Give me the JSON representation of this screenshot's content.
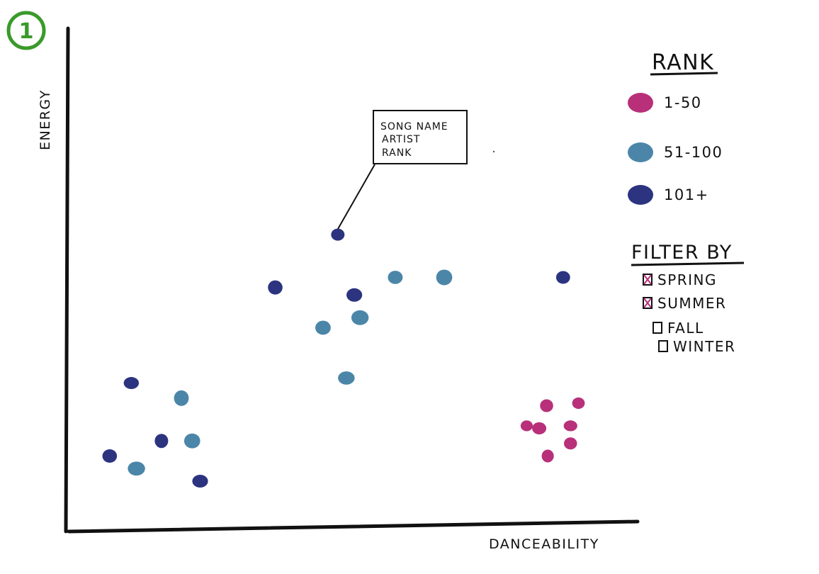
{
  "step_badge": "1",
  "chart_data": {
    "type": "scatter",
    "xlabel": "DANCEABILITY",
    "ylabel": "ENERGY",
    "xlim": [
      0,
      100
    ],
    "ylim": [
      0,
      100
    ],
    "grid": false,
    "legend_title": "RANK",
    "legend_position": "top-right",
    "series": [
      {
        "name": "1-50",
        "color": "#b8307a",
        "points": [
          [
            80.5,
            21
          ],
          [
            84,
            25
          ],
          [
            82.7,
            20.5
          ],
          [
            89.6,
            25.5
          ],
          [
            88.2,
            21
          ],
          [
            84.2,
            15
          ],
          [
            88.2,
            17.5
          ]
        ]
      },
      {
        "name": "51-100",
        "color": "#4b86a8",
        "points": [
          [
            57.4,
            50.5
          ],
          [
            66,
            50.5
          ],
          [
            51.2,
            42.5
          ],
          [
            44.7,
            40.5
          ],
          [
            48.8,
            30.5
          ],
          [
            19.8,
            26.5
          ],
          [
            21.7,
            18
          ],
          [
            11.9,
            12.5
          ]
        ]
      },
      {
        "name": "101+",
        "color": "#2c3480",
        "points": [
          [
            47.3,
            59
          ],
          [
            36.3,
            48.5
          ],
          [
            50.2,
            47
          ],
          [
            86.9,
            50.5
          ],
          [
            11,
            29.5
          ],
          [
            16.3,
            18
          ],
          [
            7.2,
            15
          ],
          [
            23.1,
            10
          ]
        ]
      }
    ],
    "annotation": {
      "lines": [
        "SONG NAME",
        "ARTIST",
        "RANK"
      ],
      "target_series": "101+",
      "target_index": 0
    }
  },
  "filter": {
    "title": "FILTER BY",
    "options": [
      {
        "label": "SPRING",
        "checked": true
      },
      {
        "label": "SUMMER",
        "checked": true
      },
      {
        "label": "FALL",
        "checked": false
      },
      {
        "label": "WINTER",
        "checked": false
      }
    ]
  }
}
